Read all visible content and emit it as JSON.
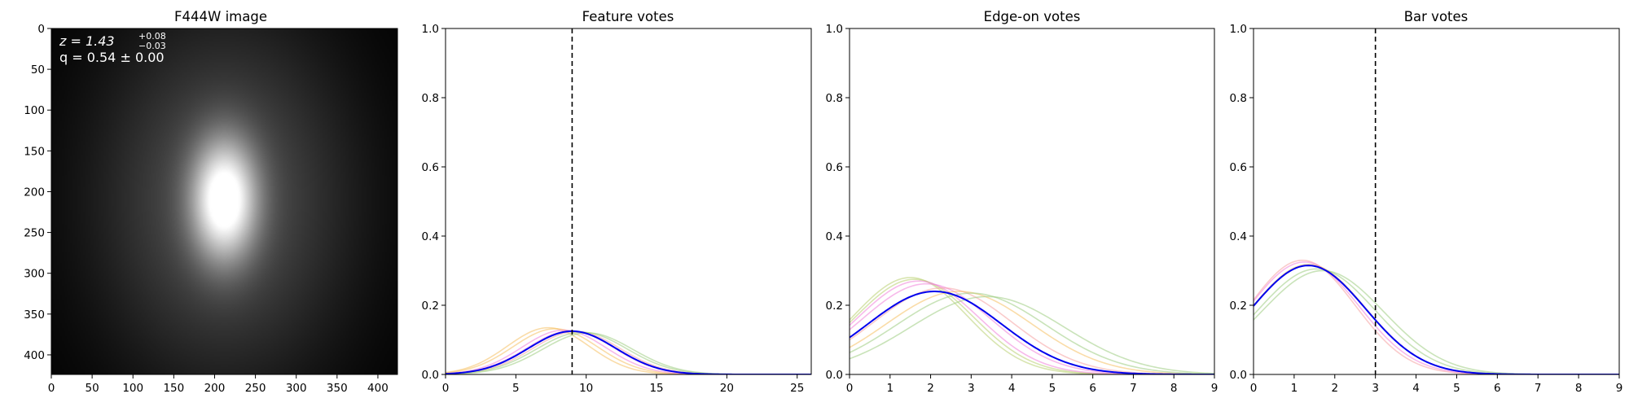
{
  "chart_data": [
    {
      "type": "image",
      "title": "F444W image",
      "colormap": "gray",
      "annotation": {
        "z_label": "z = 1.43",
        "z_sup": "+0.08",
        "z_sub": "−0.03",
        "q_label": "q = 0.54 ± 0.00"
      },
      "source": {
        "x": 212,
        "y": 210,
        "sigma_x": 26,
        "sigma_y": 48,
        "peak": 1.0,
        "halo_sigma_x": 95,
        "halo_sigma_y": 135,
        "halo_peak": 0.22
      },
      "x_ticks": [
        0,
        50,
        100,
        150,
        200,
        250,
        300,
        350,
        400
      ],
      "y_ticks": [
        0,
        50,
        100,
        150,
        200,
        250,
        300,
        350,
        400
      ],
      "xlim": [
        0,
        424
      ],
      "ylim": [
        424,
        0
      ]
    },
    {
      "type": "line",
      "title": "Feature votes",
      "xlim": [
        0,
        26
      ],
      "ylim": [
        0,
        1.0
      ],
      "x_ticks": [
        0,
        5,
        10,
        15,
        20,
        25
      ],
      "y_ticks": [
        "0.0",
        "0.2",
        "0.4",
        "0.6",
        "0.8",
        "1.0"
      ],
      "vline": 9,
      "mean": {
        "mu": 9.0,
        "sigma": 3.1,
        "peak": 0.125
      },
      "samples": [
        {
          "mu": 7.3,
          "sigma": 2.9,
          "peak": 0.135,
          "color": "#f5c060"
        },
        {
          "mu": 7.8,
          "sigma": 3.0,
          "peak": 0.132,
          "color": "#f5c060"
        },
        {
          "mu": 8.4,
          "sigma": 3.0,
          "peak": 0.128,
          "color": "#f080d8"
        },
        {
          "mu": 8.9,
          "sigma": 3.1,
          "peak": 0.126,
          "color": "#f080d8"
        },
        {
          "mu": 9.3,
          "sigma": 3.1,
          "peak": 0.124,
          "color": "#f5a0a0"
        },
        {
          "mu": 9.7,
          "sigma": 3.2,
          "peak": 0.122,
          "color": "#9ccc80"
        },
        {
          "mu": 10.1,
          "sigma": 3.2,
          "peak": 0.12,
          "color": "#9ccc80"
        }
      ]
    },
    {
      "type": "line",
      "title": "Edge-on votes",
      "xlim": [
        0,
        9
      ],
      "ylim": [
        0,
        1.0
      ],
      "x_ticks": [
        0,
        1,
        2,
        3,
        4,
        5,
        6,
        7,
        8,
        9
      ],
      "y_ticks": [
        "0.0",
        "0.2",
        "0.4",
        "0.6",
        "0.8",
        "1.0"
      ],
      "mean": {
        "mu": 2.1,
        "sigma": 1.65,
        "peak": 0.24
      },
      "samples": [
        {
          "mu": 1.5,
          "sigma": 1.4,
          "peak": 0.28,
          "color": "#b8d070"
        },
        {
          "mu": 1.6,
          "sigma": 1.45,
          "peak": 0.275,
          "color": "#b8d070"
        },
        {
          "mu": 1.7,
          "sigma": 1.5,
          "peak": 0.27,
          "color": "#f080d8"
        },
        {
          "mu": 1.9,
          "sigma": 1.6,
          "peak": 0.262,
          "color": "#f080d8"
        },
        {
          "mu": 2.3,
          "sigma": 1.7,
          "peak": 0.25,
          "color": "#f5a0a0"
        },
        {
          "mu": 2.7,
          "sigma": 1.8,
          "peak": 0.24,
          "color": "#f5c060"
        },
        {
          "mu": 3.0,
          "sigma": 1.85,
          "peak": 0.235,
          "color": "#9ccc80"
        },
        {
          "mu": 3.4,
          "sigma": 1.9,
          "peak": 0.225,
          "color": "#9ccc80"
        }
      ]
    },
    {
      "type": "line",
      "title": "Bar votes",
      "xlim": [
        0,
        9
      ],
      "ylim": [
        0,
        1.0
      ],
      "x_ticks": [
        0,
        1,
        2,
        3,
        4,
        5,
        6,
        7,
        8,
        9
      ],
      "y_ticks": [
        "0.0",
        "0.2",
        "0.4",
        "0.6",
        "0.8",
        "1.0"
      ],
      "vline": 3,
      "mean": {
        "mu": 1.35,
        "sigma": 1.4,
        "peak": 0.315
      },
      "samples": [
        {
          "mu": 1.2,
          "sigma": 1.3,
          "peak": 0.33,
          "color": "#f5a0a0"
        },
        {
          "mu": 1.25,
          "sigma": 1.35,
          "peak": 0.325,
          "color": "#f080d8"
        },
        {
          "mu": 1.35,
          "sigma": 1.4,
          "peak": 0.318,
          "color": "#f5c060"
        },
        {
          "mu": 1.55,
          "sigma": 1.45,
          "peak": 0.305,
          "color": "#9ccc80"
        },
        {
          "mu": 1.7,
          "sigma": 1.5,
          "peak": 0.3,
          "color": "#9ccc80"
        }
      ]
    }
  ],
  "colors": {
    "mean_line": "#0000ee",
    "vline": "#000000",
    "axes": "#000000"
  }
}
